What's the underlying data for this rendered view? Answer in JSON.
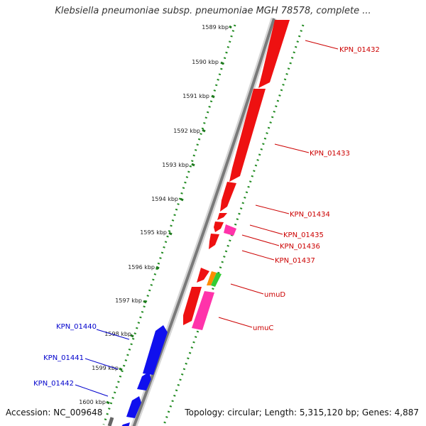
{
  "title": "Klebsiella pneumoniae subsp. pneumoniae MGH 78578, complete ...",
  "footer": {
    "accession": "Accession: NC_009648",
    "topology": "Topology: circular; Length: 5,315,120 bp; Genes: 4,887"
  },
  "colors": {
    "backbone": "#8a8a8a",
    "ruler_dots": "#228b22",
    "forward_gene": "#1010ee",
    "reverse_gene": "#ee1111",
    "pseudo_gene": "#ff33aa",
    "umuD_part_orange": "#ff8c00",
    "umuD_part_green": "#33cc33",
    "label_forward": "#0000cc",
    "label_reverse": "#cc0000"
  },
  "scale_ticks": [
    "1589 kbp",
    "1590 kbp",
    "1591 kbp",
    "1592 kbp",
    "1593 kbp",
    "1594 kbp",
    "1595 kbp",
    "1596 kbp",
    "1597 kbp",
    "1598 kbp",
    "1599 kbp",
    "1600 kbp"
  ],
  "genes_reverse": [
    {
      "label": "KPN_01432"
    },
    {
      "label": "KPN_01433"
    },
    {
      "label": "KPN_01434"
    },
    {
      "label": "KPN_01435"
    },
    {
      "label": "KPN_01436"
    },
    {
      "label": "KPN_01437"
    },
    {
      "label": "umuD"
    },
    {
      "label": "umuC"
    }
  ],
  "genes_forward": [
    {
      "label": "KPN_01440"
    },
    {
      "label": "KPN_01441"
    },
    {
      "label": "KPN_01442"
    }
  ]
}
